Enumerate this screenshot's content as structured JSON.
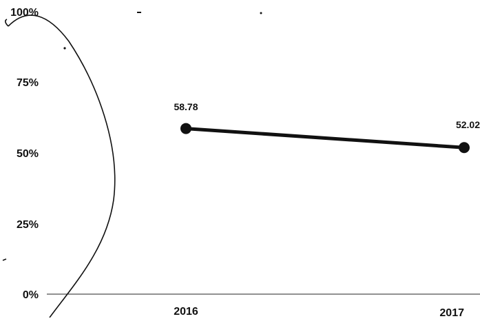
{
  "chart_data": {
    "type": "line",
    "categories": [
      "2016",
      "2017"
    ],
    "series": [
      {
        "values": [
          58.78,
          52.02
        ],
        "color": "#111111"
      }
    ],
    "data_labels": [
      "58.78",
      "52.02"
    ],
    "y_ticks": [
      "0%",
      "25%",
      "50%",
      "75%",
      "100%"
    ],
    "ylim": [
      0,
      100
    ],
    "grid": false,
    "legend": "none",
    "title": "",
    "xlabel": "",
    "ylabel": "",
    "annotations": [
      "hand-drawn ellipse circling the y-axis labels"
    ]
  }
}
